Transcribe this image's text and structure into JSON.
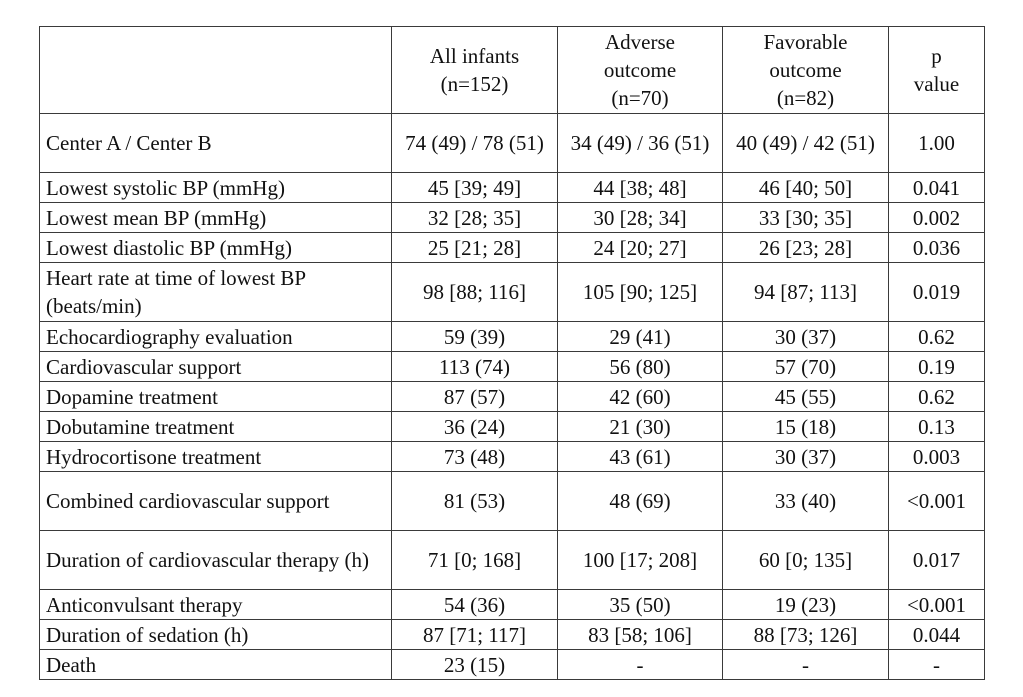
{
  "table": {
    "headers": [
      "",
      "All infants\n(n=152)",
      "Adverse\noutcome\n(n=70)",
      "Favorable\noutcome\n(n=82)",
      "p\nvalue"
    ],
    "rows": [
      {
        "label": "Center A / Center B",
        "all": "74 (49) / 78 (51)",
        "adverse": "34 (49) / 36 (51)",
        "favorable": "40 (49) / 42 (51)",
        "p": "1.00"
      },
      {
        "label": "Lowest systolic BP (mmHg)",
        "all": "45 [39; 49]",
        "adverse": "44 [38; 48]",
        "favorable": "46 [40; 50]",
        "p": "0.041"
      },
      {
        "label": "Lowest mean BP (mmHg)",
        "all": "32 [28; 35]",
        "adverse": "30 [28; 34]",
        "favorable": "33 [30; 35]",
        "p": "0.002"
      },
      {
        "label": "Lowest diastolic BP (mmHg)",
        "all": "25 [21; 28]",
        "adverse": "24 [20; 27]",
        "favorable": "26 [23; 28]",
        "p": "0.036"
      },
      {
        "label": "Heart rate at time of lowest BP (beats/min)",
        "all": "98 [88; 116]",
        "adverse": "105 [90; 125]",
        "favorable": "94 [87; 113]",
        "p": "0.019"
      },
      {
        "label": "Echocardiography evaluation",
        "all": "59 (39)",
        "adverse": "29 (41)",
        "favorable": "30 (37)",
        "p": "0.62"
      },
      {
        "label": "Cardiovascular support",
        "all": "113 (74)",
        "adverse": "56 (80)",
        "favorable": "57 (70)",
        "p": "0.19"
      },
      {
        "label": "Dopamine treatment",
        "all": "87 (57)",
        "adverse": "42 (60)",
        "favorable": "45 (55)",
        "p": "0.62"
      },
      {
        "label": "Dobutamine treatment",
        "all": "36 (24)",
        "adverse": "21 (30)",
        "favorable": "15 (18)",
        "p": "0.13"
      },
      {
        "label": "Hydrocortisone treatment",
        "all": "73 (48)",
        "adverse": "43 (61)",
        "favorable": "30 (37)",
        "p": "0.003"
      },
      {
        "label": "Combined cardiovascular support",
        "all": "81 (53)",
        "adverse": "48 (69)",
        "favorable": "33 (40)",
        "p": "<0.001"
      },
      {
        "label": "Duration of cardiovascular therapy (h)",
        "all": "71 [0; 168]",
        "adverse": "100 [17; 208]",
        "favorable": "60 [0; 135]",
        "p": "0.017"
      },
      {
        "label": "Anticonvulsant therapy",
        "all": "54 (36)",
        "adverse": "35 (50)",
        "favorable": "19 (23)",
        "p": "<0.001"
      },
      {
        "label": "Duration of sedation (h)",
        "all": "87 [71; 117]",
        "adverse": "83 [58; 106]",
        "favorable": "88 [73; 126]",
        "p": "0.044"
      },
      {
        "label": "Death",
        "all": "23 (15)",
        "adverse": "-",
        "favorable": "-",
        "p": "-"
      }
    ]
  }
}
